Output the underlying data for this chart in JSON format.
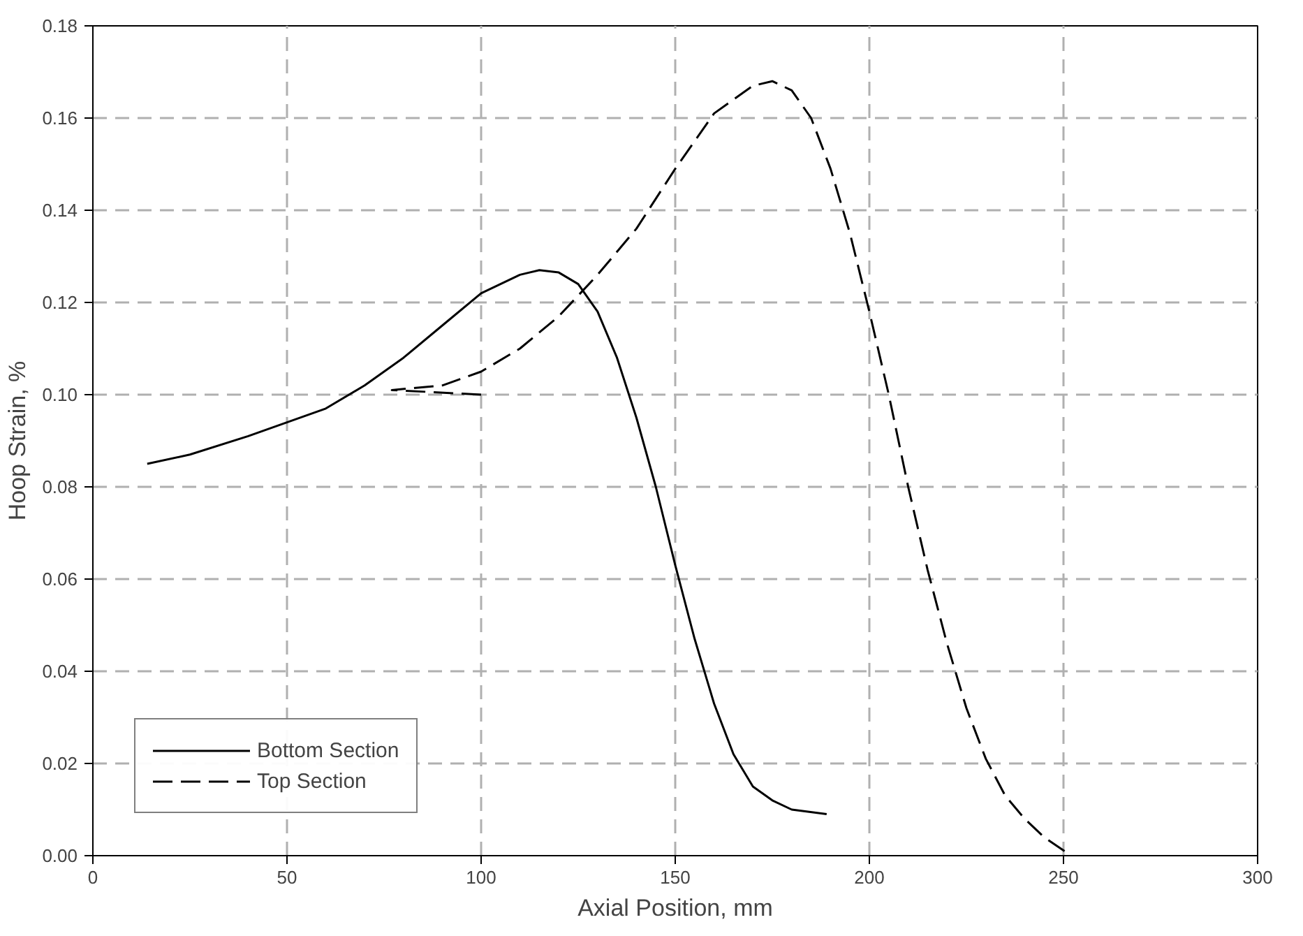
{
  "chart_data": {
    "type": "line",
    "xlabel": "Axial Position, mm",
    "ylabel": "Hoop Strain, %",
    "xlim": [
      0,
      300
    ],
    "xticks": [
      0,
      50,
      100,
      150,
      200,
      250,
      300
    ],
    "ylim": [
      0,
      0.18
    ],
    "yticks": [
      {
        "value": 0,
        "label": "0.00"
      },
      {
        "value": 0.02,
        "label": "0.02"
      },
      {
        "value": 0.04,
        "label": "0.04"
      },
      {
        "value": 0.06,
        "label": "0.06"
      },
      {
        "value": 0.08,
        "label": "0.08"
      },
      {
        "value": 0.1,
        "label": "0.10"
      },
      {
        "value": 0.12,
        "label": "0.12"
      },
      {
        "value": 0.14,
        "label": "0.14"
      },
      {
        "value": 0.16,
        "label": "0.16"
      },
      {
        "value": 0.18,
        "label": "0.18"
      }
    ],
    "grid": true,
    "legend": "bottom left",
    "marker": "none",
    "series": [
      {
        "name": "Bottom Section",
        "color": "#000000",
        "line_style": "solid",
        "x": [
          14,
          25,
          40,
          50,
          60,
          70,
          80,
          90,
          100,
          110,
          115,
          120,
          125,
          130,
          135,
          140,
          145,
          150,
          155,
          160,
          165,
          170,
          175,
          180,
          189
        ],
        "values": [
          0.085,
          0.087,
          0.091,
          0.094,
          0.097,
          0.102,
          0.108,
          0.115,
          0.122,
          0.126,
          0.127,
          0.1265,
          0.124,
          0.118,
          0.108,
          0.095,
          0.08,
          0.063,
          0.047,
          0.033,
          0.022,
          0.015,
          0.012,
          0.01,
          0.009
        ]
      },
      {
        "name": "Top Section",
        "color": "#000000",
        "line_style": "dashed",
        "x": [
          100,
          77,
          90,
          100,
          110,
          120,
          130,
          140,
          150,
          160,
          170,
          175,
          180,
          185,
          190,
          195,
          200,
          205,
          210,
          215,
          220,
          225,
          230,
          235,
          240,
          245,
          252
        ],
        "values": [
          0.1,
          0.101,
          0.102,
          0.105,
          0.11,
          0.117,
          0.126,
          0.136,
          0.149,
          0.161,
          0.167,
          0.168,
          0.166,
          0.16,
          0.149,
          0.135,
          0.118,
          0.1,
          0.08,
          0.062,
          0.046,
          0.032,
          0.021,
          0.013,
          0.008,
          0.004,
          0.0
        ]
      }
    ]
  }
}
